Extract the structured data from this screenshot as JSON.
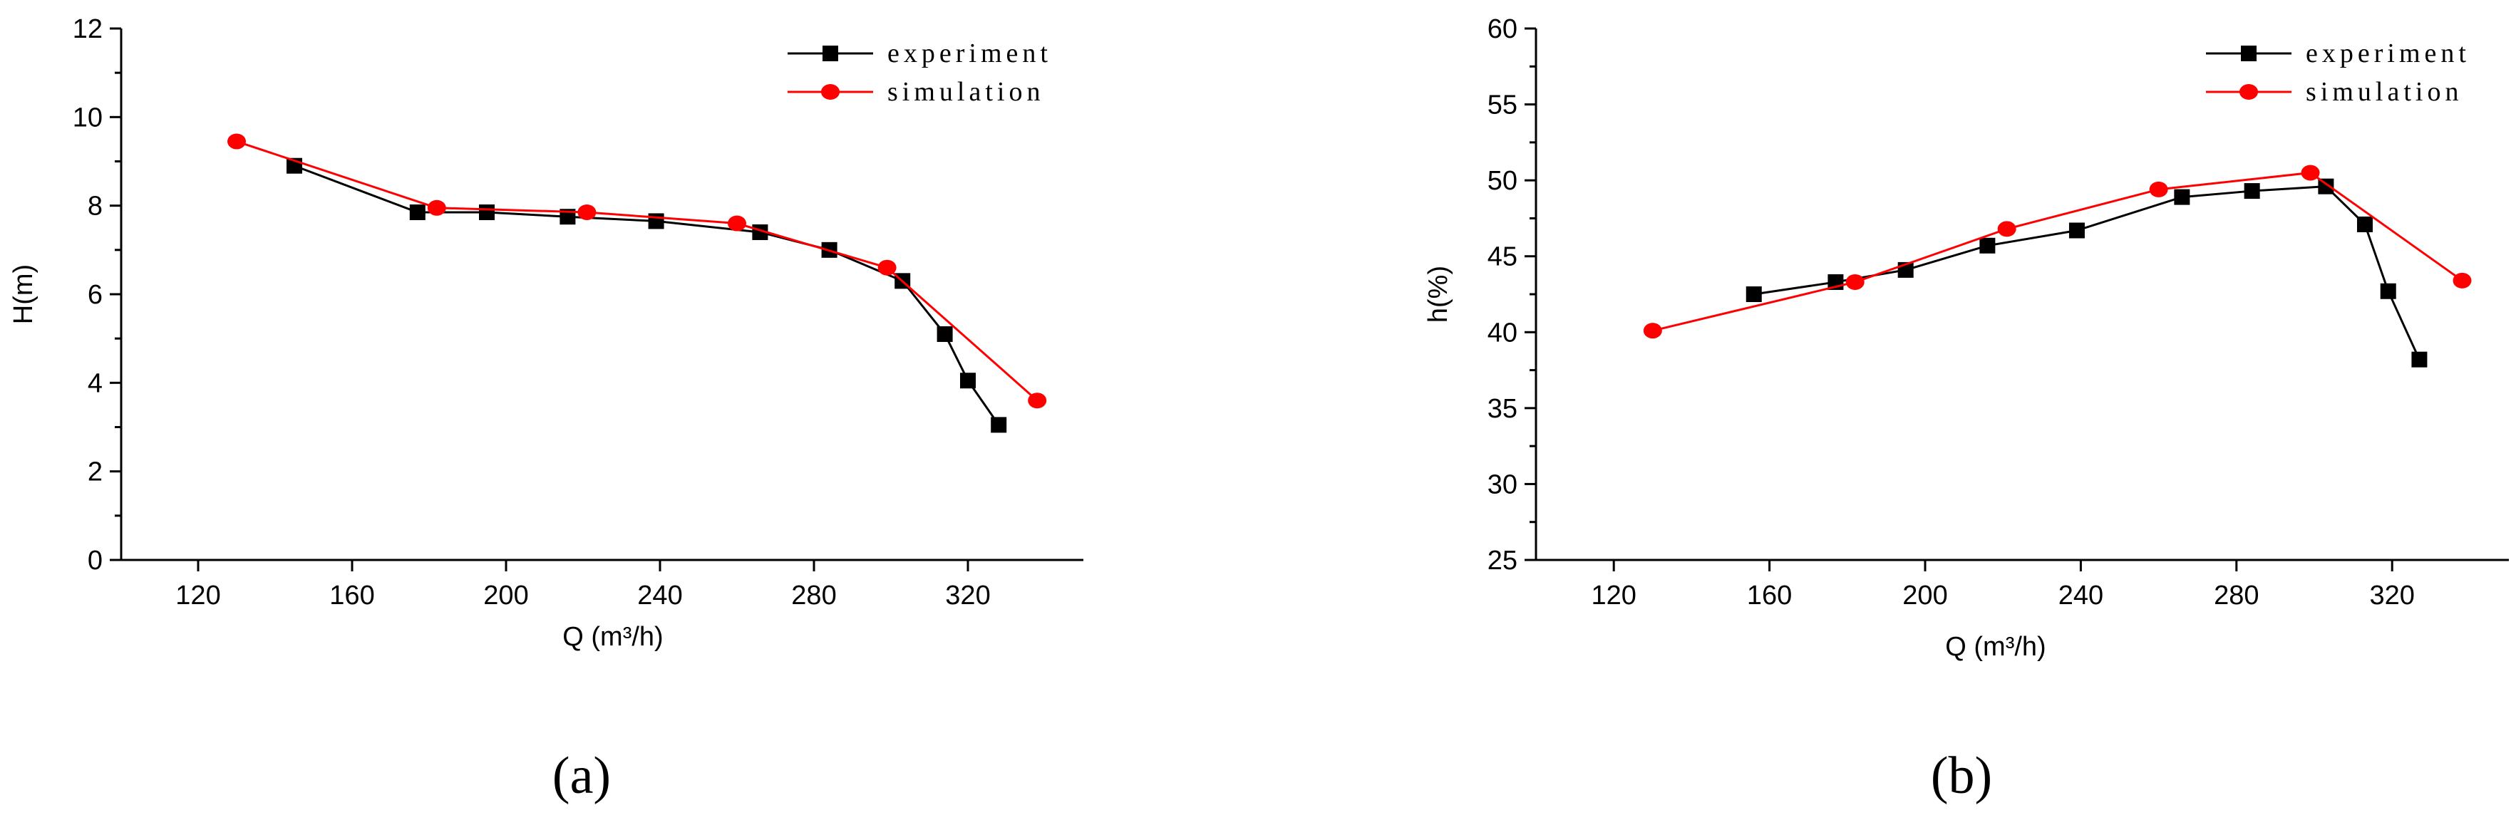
{
  "chart_data": [
    {
      "type": "line",
      "panel": "a",
      "xlabel": "Q (m³/h)",
      "ylabel": "H(m)",
      "xlim": [
        100,
        350
      ],
      "ylim": [
        0,
        12
      ],
      "xticks": [
        120,
        160,
        200,
        240,
        280,
        320
      ],
      "yticks": [
        0,
        2,
        4,
        6,
        8,
        10,
        12
      ],
      "legend_position": "top-right",
      "series": [
        {
          "name": "experiment",
          "color": "#000000",
          "marker": "square",
          "x": [
            145,
            177,
            195,
            216,
            239,
            266,
            284,
            303,
            314,
            320,
            328
          ],
          "y": [
            8.9,
            7.85,
            7.85,
            7.75,
            7.65,
            7.4,
            7.0,
            6.3,
            5.1,
            4.05,
            3.05
          ]
        },
        {
          "name": "simulation",
          "color": "#ff0000",
          "marker": "circle",
          "x": [
            130,
            182,
            221,
            260,
            299,
            338
          ],
          "y": [
            9.45,
            7.95,
            7.85,
            7.6,
            6.6,
            3.6
          ]
        }
      ]
    },
    {
      "type": "line",
      "panel": "b",
      "xlabel": "Q (m³/h)",
      "ylabel": "h(%)",
      "xlim": [
        100,
        350
      ],
      "ylim": [
        25,
        60
      ],
      "xticks": [
        120,
        160,
        200,
        240,
        280,
        320
      ],
      "yticks": [
        25,
        30,
        35,
        40,
        45,
        50,
        55,
        60
      ],
      "legend_position": "top-right",
      "series": [
        {
          "name": "experiment",
          "color": "#000000",
          "marker": "square",
          "x": [
            156,
            177,
            195,
            216,
            239,
            266,
            284,
            303,
            313,
            319,
            327
          ],
          "y": [
            42.5,
            43.3,
            44.1,
            45.7,
            46.7,
            48.9,
            49.3,
            49.6,
            47.1,
            42.7,
            38.2
          ]
        },
        {
          "name": "simulation",
          "color": "#ff0000",
          "marker": "circle",
          "x": [
            130,
            182,
            221,
            260,
            299,
            338
          ],
          "y": [
            40.1,
            43.3,
            46.8,
            49.4,
            50.5,
            43.4
          ]
        }
      ]
    }
  ],
  "panel_labels": [
    "(a)",
    "(b)"
  ]
}
